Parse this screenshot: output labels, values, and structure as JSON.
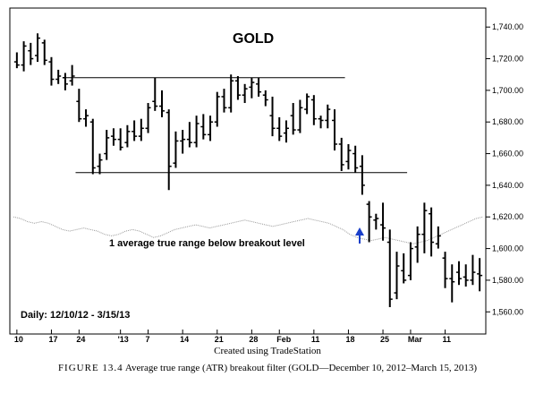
{
  "chart_data": {
    "type": "bar",
    "subtype": "ohlc",
    "title": "GOLD",
    "date_range_label": "Daily: 12/10/12 - 3/15/13",
    "annotation": "1 average true range below breakout level",
    "y_ticks": [
      "1,740.00",
      "1,720.00",
      "1,700.00",
      "1,680.00",
      "1,660.00",
      "1,640.00",
      "1,620.00",
      "1,600.00",
      "1,580.00",
      "1,560.00"
    ],
    "y_tick_values": [
      1740,
      1720,
      1700,
      1680,
      1660,
      1640,
      1620,
      1600,
      1580,
      1560
    ],
    "ylim": [
      1546,
      1752
    ],
    "x_ticks": [
      "10",
      "17",
      "24",
      "'13",
      "7",
      "14",
      "21",
      "28",
      "Feb",
      "11",
      "18",
      "25",
      "Mar",
      "11"
    ],
    "x_tick_index": [
      0,
      5,
      9,
      15,
      19,
      24,
      29,
      34,
      38,
      43,
      48,
      53,
      57,
      62
    ],
    "x_count": 68,
    "resistance_level": 1708,
    "support_level": 1648,
    "filter_line": [
      1620,
      1619,
      1617,
      1616,
      1617,
      1616,
      1614,
      1612,
      1611,
      1612,
      1613,
      1612,
      1611,
      1609,
      1608,
      1609,
      1611,
      1612,
      1611,
      1609,
      1607,
      1608,
      1610,
      1612,
      1613,
      1614,
      1615,
      1614,
      1613,
      1614,
      1615,
      1616,
      1617,
      1618,
      1617,
      1616,
      1615,
      1614,
      1615,
      1616,
      1617,
      1618,
      1619,
      1618,
      1617,
      1616,
      1614,
      1612,
      1609,
      1607,
      1606,
      1605,
      1606,
      1607,
      1606,
      1605,
      1604,
      1603,
      1604,
      1605,
      1607,
      1609,
      1611,
      1613,
      1615,
      1617,
      1619,
      1620
    ],
    "ohlc": [
      {
        "o": 1718,
        "h": 1724,
        "l": 1714,
        "c": 1716
      },
      {
        "o": 1716,
        "h": 1731,
        "l": 1712,
        "c": 1728
      },
      {
        "o": 1725,
        "h": 1730,
        "l": 1716,
        "c": 1720
      },
      {
        "o": 1722,
        "h": 1736,
        "l": 1718,
        "c": 1733
      },
      {
        "o": 1730,
        "h": 1732,
        "l": 1716,
        "c": 1719
      },
      {
        "o": 1718,
        "h": 1721,
        "l": 1703,
        "c": 1707
      },
      {
        "o": 1707,
        "h": 1713,
        "l": 1704,
        "c": 1709
      },
      {
        "o": 1708,
        "h": 1711,
        "l": 1700,
        "c": 1704
      },
      {
        "o": 1706,
        "h": 1716,
        "l": 1703,
        "c": 1709
      },
      {
        "o": 1693,
        "h": 1701,
        "l": 1680,
        "c": 1682
      },
      {
        "o": 1682,
        "h": 1688,
        "l": 1677,
        "c": 1684
      },
      {
        "o": 1680,
        "h": 1682,
        "l": 1647,
        "c": 1651
      },
      {
        "o": 1652,
        "h": 1660,
        "l": 1647,
        "c": 1656
      },
      {
        "o": 1660,
        "h": 1675,
        "l": 1656,
        "c": 1670
      },
      {
        "o": 1671,
        "h": 1676,
        "l": 1665,
        "c": 1669
      },
      {
        "o": 1669,
        "h": 1676,
        "l": 1662,
        "c": 1664
      },
      {
        "o": 1667,
        "h": 1678,
        "l": 1664,
        "c": 1674
      },
      {
        "o": 1674,
        "h": 1681,
        "l": 1668,
        "c": 1671
      },
      {
        "o": 1671,
        "h": 1682,
        "l": 1668,
        "c": 1676
      },
      {
        "o": 1676,
        "h": 1692,
        "l": 1673,
        "c": 1689
      },
      {
        "o": 1693,
        "h": 1708,
        "l": 1687,
        "c": 1690
      },
      {
        "o": 1690,
        "h": 1700,
        "l": 1683,
        "c": 1687
      },
      {
        "o": 1686,
        "h": 1688,
        "l": 1637,
        "c": 1652
      },
      {
        "o": 1654,
        "h": 1674,
        "l": 1651,
        "c": 1668
      },
      {
        "o": 1668,
        "h": 1675,
        "l": 1660,
        "c": 1669
      },
      {
        "o": 1669,
        "h": 1680,
        "l": 1664,
        "c": 1667
      },
      {
        "o": 1667,
        "h": 1684,
        "l": 1664,
        "c": 1679
      },
      {
        "o": 1677,
        "h": 1685,
        "l": 1669,
        "c": 1672
      },
      {
        "o": 1672,
        "h": 1684,
        "l": 1668,
        "c": 1680
      },
      {
        "o": 1680,
        "h": 1699,
        "l": 1677,
        "c": 1696
      },
      {
        "o": 1696,
        "h": 1701,
        "l": 1686,
        "c": 1689
      },
      {
        "o": 1689,
        "h": 1710,
        "l": 1686,
        "c": 1706
      },
      {
        "o": 1706,
        "h": 1709,
        "l": 1694,
        "c": 1697
      },
      {
        "o": 1697,
        "h": 1704,
        "l": 1692,
        "c": 1701
      },
      {
        "o": 1702,
        "h": 1708,
        "l": 1695,
        "c": 1705
      },
      {
        "o": 1704,
        "h": 1708,
        "l": 1696,
        "c": 1699
      },
      {
        "o": 1697,
        "h": 1700,
        "l": 1690,
        "c": 1694
      },
      {
        "o": 1684,
        "h": 1696,
        "l": 1671,
        "c": 1676
      },
      {
        "o": 1676,
        "h": 1683,
        "l": 1668,
        "c": 1671
      },
      {
        "o": 1673,
        "h": 1681,
        "l": 1667,
        "c": 1676
      },
      {
        "o": 1684,
        "h": 1692,
        "l": 1672,
        "c": 1675
      },
      {
        "o": 1675,
        "h": 1694,
        "l": 1673,
        "c": 1689
      },
      {
        "o": 1688,
        "h": 1698,
        "l": 1685,
        "c": 1696
      },
      {
        "o": 1694,
        "h": 1697,
        "l": 1678,
        "c": 1682
      },
      {
        "o": 1682,
        "h": 1684,
        "l": 1676,
        "c": 1681
      },
      {
        "o": 1681,
        "h": 1691,
        "l": 1676,
        "c": 1688
      },
      {
        "o": 1681,
        "h": 1688,
        "l": 1662,
        "c": 1666
      },
      {
        "o": 1666,
        "h": 1670,
        "l": 1649,
        "c": 1653
      },
      {
        "o": 1655,
        "h": 1666,
        "l": 1650,
        "c": 1662
      },
      {
        "o": 1660,
        "h": 1665,
        "l": 1648,
        "c": 1651
      },
      {
        "o": 1652,
        "h": 1659,
        "l": 1634,
        "c": 1640
      },
      {
        "o": 1628,
        "h": 1630,
        "l": 1604,
        "c": 1620
      },
      {
        "o": 1618,
        "h": 1622,
        "l": 1612,
        "c": 1619
      },
      {
        "o": 1615,
        "h": 1629,
        "l": 1605,
        "c": 1613
      },
      {
        "o": 1604,
        "h": 1612,
        "l": 1563,
        "c": 1568
      },
      {
        "o": 1572,
        "h": 1598,
        "l": 1568,
        "c": 1589
      },
      {
        "o": 1586,
        "h": 1597,
        "l": 1578,
        "c": 1580
      },
      {
        "o": 1583,
        "h": 1604,
        "l": 1580,
        "c": 1600
      },
      {
        "o": 1601,
        "h": 1614,
        "l": 1591,
        "c": 1609
      },
      {
        "o": 1609,
        "h": 1629,
        "l": 1597,
        "c": 1624
      },
      {
        "o": 1622,
        "h": 1626,
        "l": 1595,
        "c": 1604
      },
      {
        "o": 1603,
        "h": 1614,
        "l": 1600,
        "c": 1608
      },
      {
        "o": 1594,
        "h": 1598,
        "l": 1575,
        "c": 1581
      },
      {
        "o": 1581,
        "h": 1590,
        "l": 1566,
        "c": 1579
      },
      {
        "o": 1585,
        "h": 1592,
        "l": 1577,
        "c": 1581
      },
      {
        "o": 1582,
        "h": 1590,
        "l": 1576,
        "c": 1580
      },
      {
        "o": 1580,
        "h": 1596,
        "l": 1577,
        "c": 1585
      },
      {
        "o": 1584,
        "h": 1594,
        "l": 1573,
        "c": 1583
      }
    ]
  },
  "credit": "Created using TradeStation",
  "figure_caption": {
    "label": "FIGURE 13.4",
    "text": "Average true range (ATR) breakout filter (GOLD—December 10, 2012–March 15, 2013)"
  }
}
